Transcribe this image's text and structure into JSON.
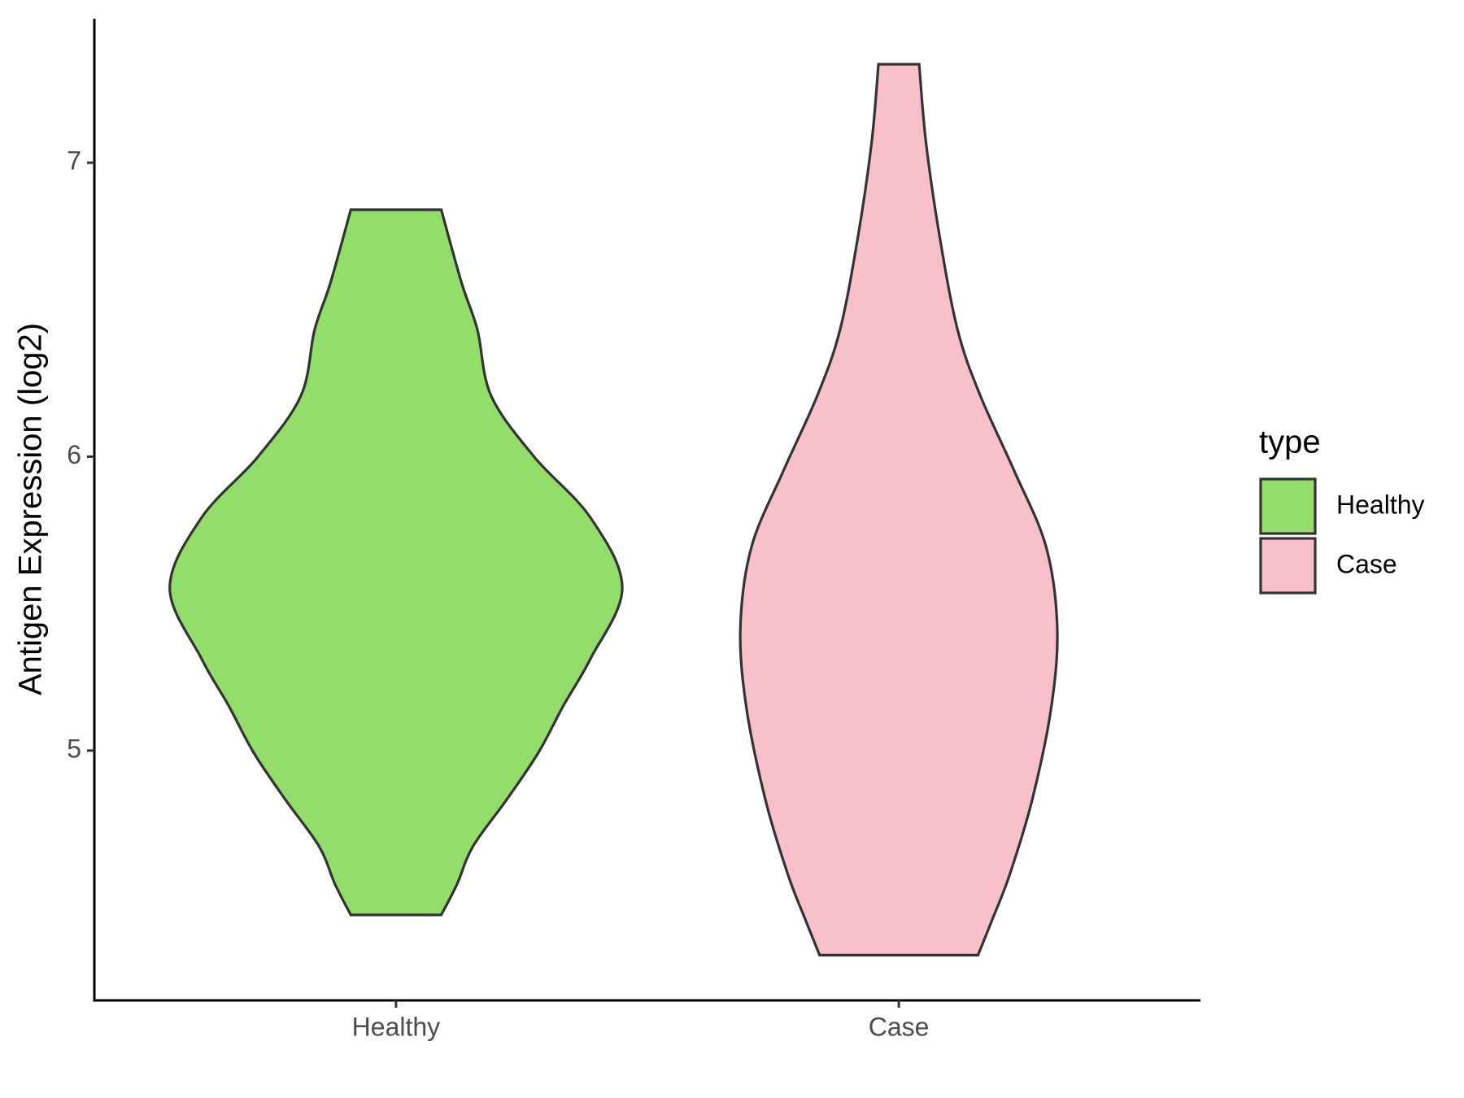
{
  "chart_data": {
    "type": "violin",
    "y_label": "Antigen Expression (log2)",
    "categories": [
      "Healthy",
      "Case"
    ],
    "legend_title": "type",
    "legend": "right",
    "ylim": [
      4.15,
      7.49
    ],
    "yticks": [
      5,
      6,
      7
    ],
    "series": [
      {
        "name": "Healthy",
        "color": "#93dd6b",
        "y": [
          6.84,
          6.591,
          6.431,
          6.208,
          6.0,
          5.792,
          5.553,
          5.313,
          5.153,
          4.994,
          4.834,
          4.674,
          4.546,
          4.441
        ],
        "width": [
          0.2,
          0.29,
          0.36,
          0.42,
          0.61,
          0.86,
          1.0,
          0.86,
          0.74,
          0.63,
          0.49,
          0.34,
          0.27,
          0.2
        ]
      },
      {
        "name": "Case",
        "color": "#f7c0cb",
        "y": [
          7.335,
          7.07,
          6.751,
          6.431,
          6.208,
          5.952,
          5.696,
          5.425,
          5.153,
          4.834,
          4.578,
          4.419,
          4.304
        ],
        "width": [
          0.09,
          0.12,
          0.18,
          0.26,
          0.36,
          0.51,
          0.65,
          0.7,
          0.675,
          0.59,
          0.49,
          0.41,
          0.35
        ]
      }
    ]
  }
}
